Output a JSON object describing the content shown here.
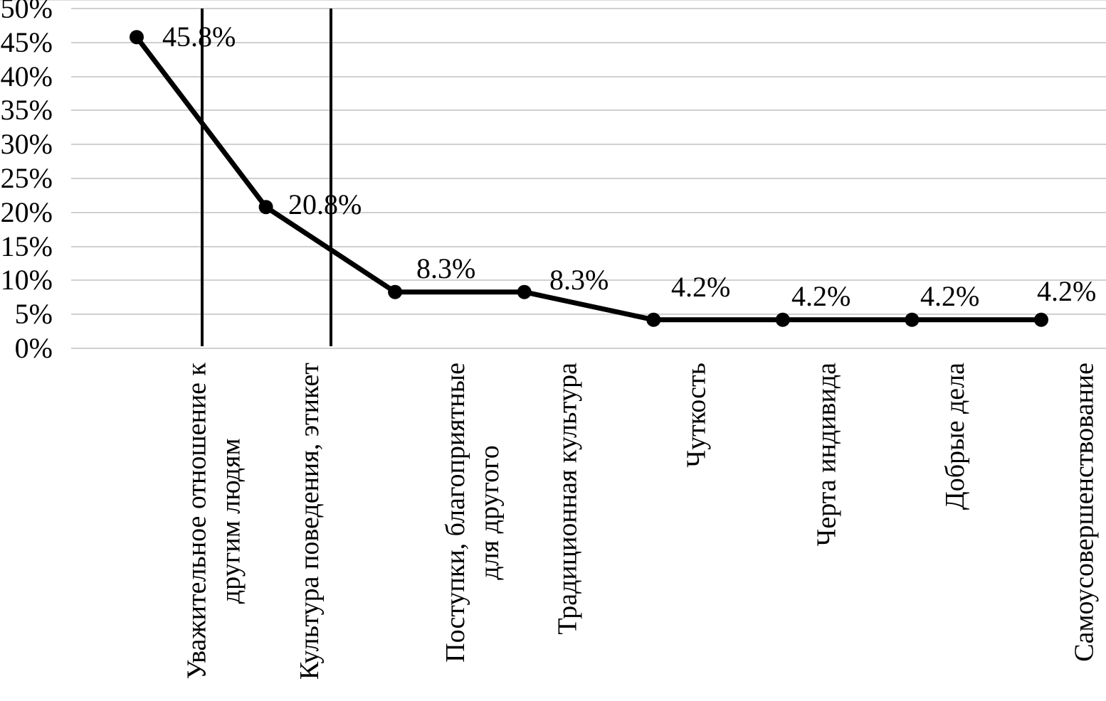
{
  "chart_data": {
    "type": "line",
    "title": "",
    "xlabel": "",
    "ylabel": "",
    "categories": [
      "Уважительное отношение к\nдругим людям",
      "Культура поведения, этикет",
      "Поступки, благоприятные\nдля другого",
      "Традиционная культура",
      "Чуткость",
      "Черта индивида",
      "Добрые дела",
      "Самоусовершенствование"
    ],
    "values": [
      45.8,
      20.8,
      8.3,
      8.3,
      4.2,
      4.2,
      4.2,
      4.2
    ],
    "data_labels": [
      "45.8%",
      "20.8%",
      "8.3%",
      "8.3%",
      "4.2%",
      "4.2%",
      "4.2%",
      "4.2%"
    ],
    "y_tick_labels": [
      "0%",
      "5%",
      "10%",
      "15%",
      "20%",
      "25%",
      "30%",
      "35%",
      "40%",
      "45%",
      "50%"
    ],
    "ylim": [
      0,
      50
    ],
    "y_tick_step": 5,
    "grid": true,
    "legend": "none",
    "line_color": "#000000",
    "marker": "circle",
    "marker_color": "#000000",
    "gridline_color": "#d0d0d0",
    "separator_line_color": "#000000",
    "separator_lines_after_category": [
      1,
      2
    ]
  }
}
